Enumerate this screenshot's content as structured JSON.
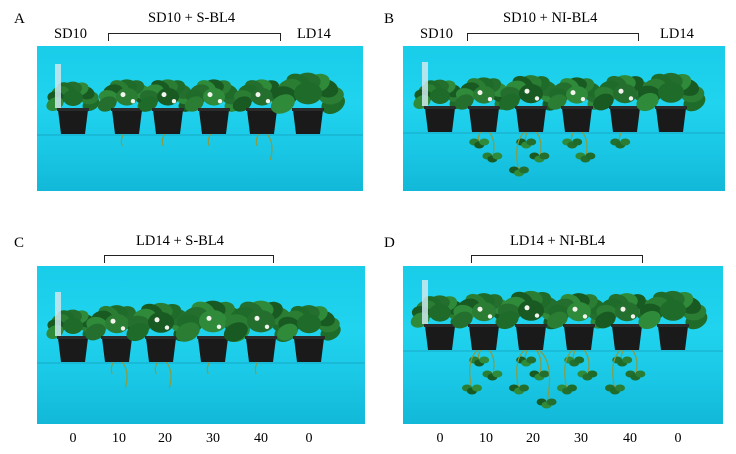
{
  "panels": [
    {
      "id": "A",
      "letter": "A",
      "left_label": "SD10",
      "treatment": "SD10 + S-BL4",
      "right_label": "LD14"
    },
    {
      "id": "B",
      "letter": "B",
      "left_label": "SD10",
      "treatment": "SD10 + NI-BL4",
      "right_label": "LD14"
    },
    {
      "id": "C",
      "letter": "C",
      "left_label": "",
      "treatment": "LD14 + S-BL4",
      "right_label": ""
    },
    {
      "id": "D",
      "letter": "D",
      "left_label": "",
      "treatment": "LD14 + NI-BL4",
      "right_label": ""
    }
  ],
  "x_ticks": [
    "0",
    "10",
    "20",
    "30",
    "40",
    "0"
  ],
  "colors": {
    "background_cloth": "#1ccfe9",
    "leaf": "#1f6b2a",
    "pot": "#1a1a1a",
    "runner": "#8a9a40"
  }
}
